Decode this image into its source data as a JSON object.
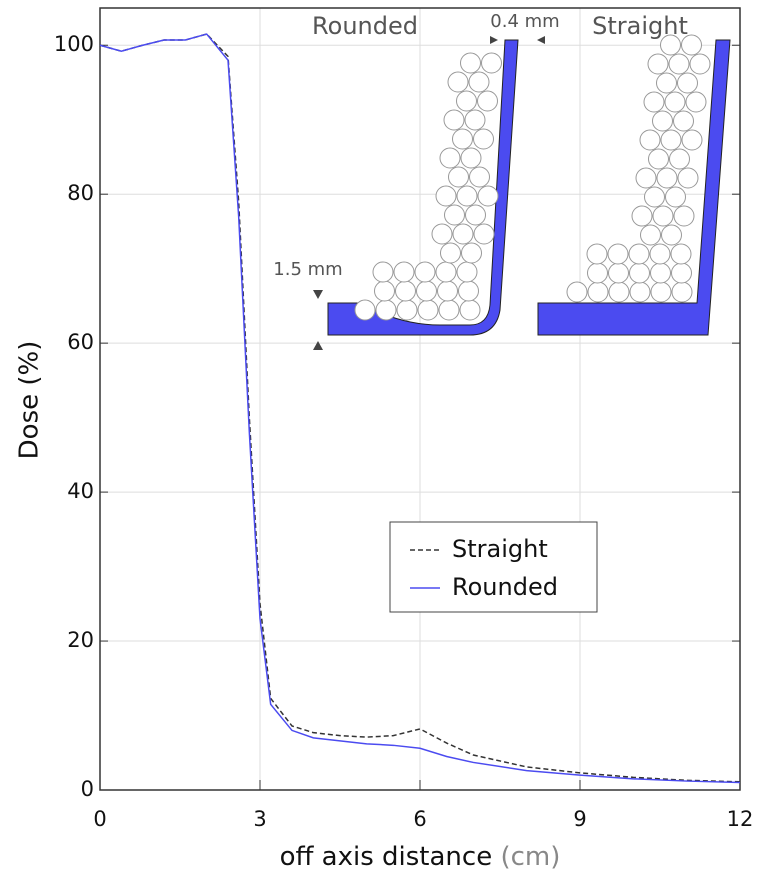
{
  "chart_data": {
    "type": "line",
    "xlabel": "off axis distance",
    "xlabel_unit": "(cm)",
    "ylabel": "Dose (%)",
    "x": [
      0,
      0.4,
      0.8,
      1.2,
      1.6,
      2.0,
      2.4,
      2.6,
      2.8,
      3.0,
      3.2,
      3.6,
      4.0,
      4.5,
      5.0,
      5.5,
      6.0,
      6.5,
      7.0,
      8.0,
      9.0,
      10.0,
      11.0,
      12.0
    ],
    "series": [
      {
        "name": "Straight",
        "color": "#333333",
        "dash": true,
        "values": [
          100,
          99.2,
          100,
          100.7,
          100.7,
          101.5,
          98.5,
          79,
          50,
          25,
          12.3,
          8.6,
          7.7,
          7.3,
          7.1,
          7.3,
          8.2,
          6.3,
          4.7,
          3.1,
          2.3,
          1.7,
          1.3,
          1.1
        ]
      },
      {
        "name": "Rounded",
        "color": "#4b4bf0",
        "dash": false,
        "values": [
          100,
          99.2,
          100,
          100.7,
          100.7,
          101.5,
          98,
          77,
          48,
          23,
          11.5,
          8,
          7,
          6.6,
          6.2,
          6,
          5.6,
          4.5,
          3.7,
          2.6,
          2,
          1.5,
          1.2,
          1
        ]
      }
    ],
    "xlim": [
      0,
      12
    ],
    "xticks": [
      0,
      3,
      6,
      9,
      12
    ],
    "ylim": [
      0,
      105
    ],
    "yticks": [
      0,
      20,
      40,
      60,
      80,
      100
    ],
    "grid": true,
    "legend": "lower right",
    "annotations": [
      "Rounded",
      "0.4 mm",
      "Straight",
      "1.5 mm"
    ]
  }
}
